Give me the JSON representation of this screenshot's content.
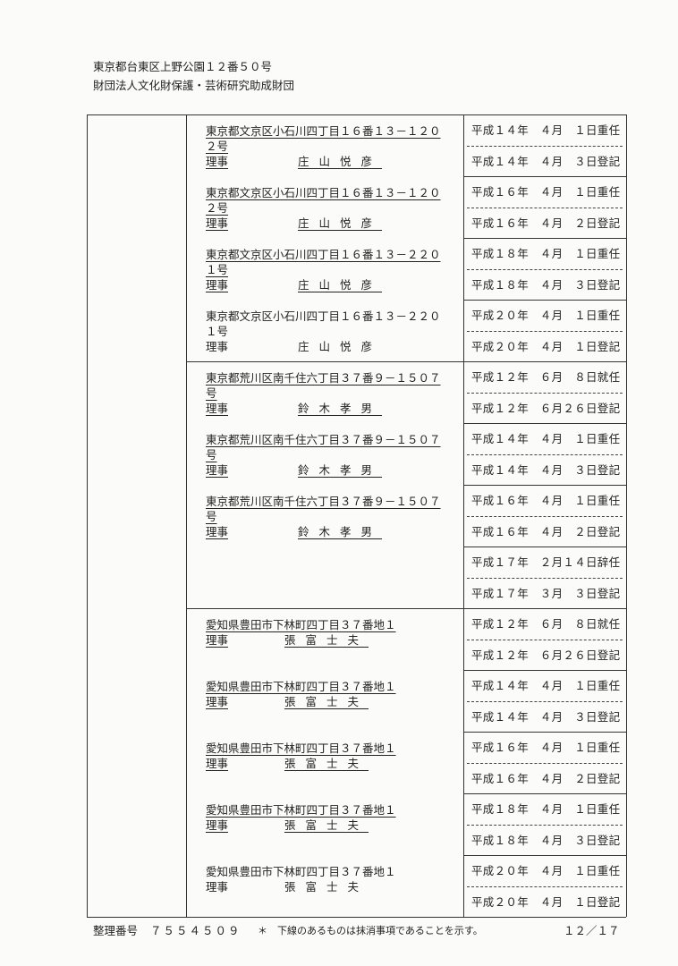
{
  "header": [
    "東京都台東区上野公園１２番５０号",
    "財団法人文化財保護・芸術研究助成財団"
  ],
  "sections": [
    {
      "entries": [
        {
          "address": [
            "東京都文京区小石川四丁目１６番１３－１２０",
            "２号"
          ],
          "role": "理事",
          "name": "庄山悦彦",
          "struck": true
        },
        {
          "address": [
            "東京都文京区小石川四丁目１６番１３－１２０",
            "２号"
          ],
          "role": "理事",
          "name": "庄山悦彦",
          "struck": true
        },
        {
          "address": [
            "東京都文京区小石川四丁目１６番１３－２２０",
            "１号"
          ],
          "role": "理事",
          "name": "庄山悦彦",
          "struck": true
        },
        {
          "address": [
            "東京都文京区小石川四丁目１６番１３－２２０",
            "１号"
          ],
          "role": "理事",
          "name": "庄山悦彦",
          "struck": false
        }
      ],
      "dates": [
        "平成１４年　４月　１日重任",
        "平成１４年　４月　３日登記",
        "平成１６年　４月　１日重任",
        "平成１６年　４月　２日登記",
        "平成１８年　４月　１日重任",
        "平成１８年　４月　３日登記",
        "平成２０年　４月　１日重任",
        "平成２０年　４月　１日登記"
      ]
    },
    {
      "entries": [
        {
          "address": [
            "東京都荒川区南千住六丁目３７番９－１５０７",
            "号"
          ],
          "role": "理事",
          "name": "鈴木孝男",
          "struck": true
        },
        {
          "address": [
            "東京都荒川区南千住六丁目３７番９－１５０７",
            "号"
          ],
          "role": "理事",
          "name": "鈴木孝男",
          "struck": true
        },
        {
          "address": [
            "東京都荒川区南千住六丁目３７番９－１５０７",
            "号"
          ],
          "role": "理事",
          "name": "鈴木孝男",
          "struck": true
        }
      ],
      "dates": [
        "平成１２年　６月　８日就任",
        "平成１２年　６月２６日登記",
        "平成１４年　４月　１日重任",
        "平成１４年　４月　３日登記",
        "平成１６年　４月　１日重任",
        "平成１６年　４月　２日登記",
        "平成１７年　２月１４日辞任",
        "平成１７年　３月　３日登記"
      ]
    },
    {
      "entries": [
        {
          "address": [
            "愛知県豊田市下林町四丁目３７番地１"
          ],
          "role": "理事",
          "name": "張富士夫",
          "struck": true
        },
        {
          "address": [
            "愛知県豊田市下林町四丁目３７番地１"
          ],
          "role": "理事",
          "name": "張富士夫",
          "struck": true
        },
        {
          "address": [
            "愛知県豊田市下林町四丁目３７番地１"
          ],
          "role": "理事",
          "name": "張富士夫",
          "struck": true
        },
        {
          "address": [
            "愛知県豊田市下林町四丁目３７番地１"
          ],
          "role": "理事",
          "name": "張富士夫",
          "struck": true
        },
        {
          "address": [
            "愛知県豊田市下林町四丁目３７番地１"
          ],
          "role": "理事",
          "name": "張富士夫",
          "struck": false
        }
      ],
      "dates": [
        "平成１２年　６月　８日就任",
        "平成１２年　６月２６日登記",
        "平成１４年　４月　１日重任",
        "平成１４年　４月　３日登記",
        "平成１６年　４月　１日重任",
        "平成１６年　４月　２日登記",
        "平成１８年　４月　１日重任",
        "平成１８年　４月　３日登記",
        "平成２０年　４月　１日重任",
        "平成２０年　４月　１日登記"
      ]
    }
  ],
  "footer": {
    "label": "整理番号",
    "number": "７５５４５０９",
    "note": "＊　下線のあるものは抹消事項であることを示す。",
    "page": "１２／１７"
  }
}
